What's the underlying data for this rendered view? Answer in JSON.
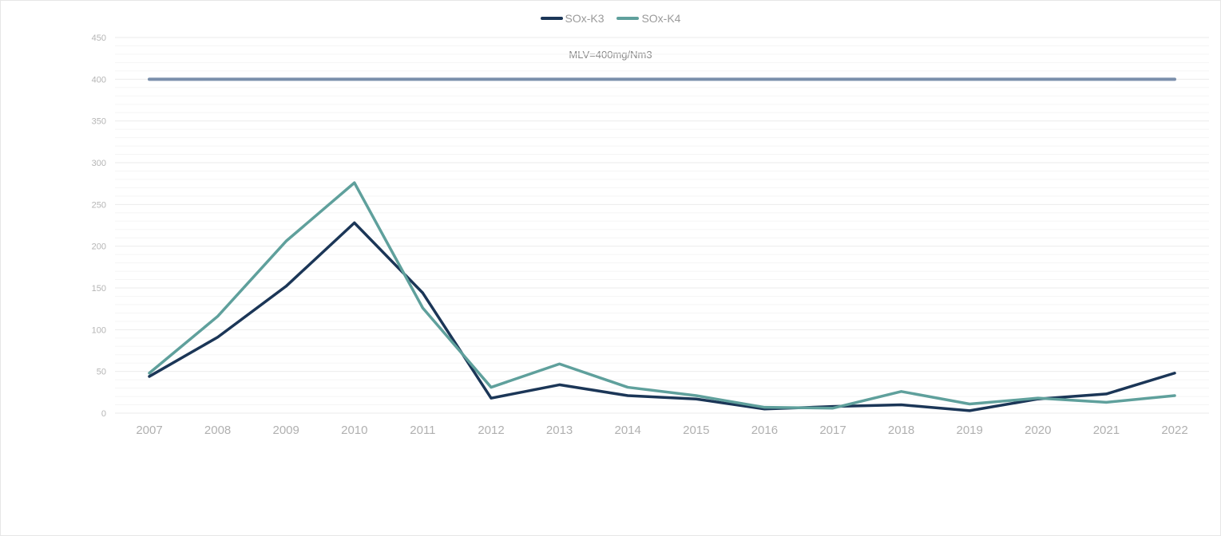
{
  "chart_data": {
    "type": "line",
    "categories": [
      "2007",
      "2008",
      "2009",
      "2010",
      "2011",
      "2012",
      "2013",
      "2014",
      "2015",
      "2016",
      "2017",
      "2018",
      "2019",
      "2020",
      "2021",
      "2022"
    ],
    "series": [
      {
        "name": "SOx-K3",
        "color": "#1b3657",
        "values": [
          44,
          91,
          152,
          228,
          144,
          18,
          34,
          21,
          17,
          5,
          8,
          10,
          3,
          17,
          23,
          48
        ]
      },
      {
        "name": "SOx-K4",
        "color": "#5fa09c",
        "values": [
          48,
          116,
          206,
          276,
          126,
          31,
          59,
          31,
          21,
          7,
          6,
          26,
          11,
          18,
          13,
          21
        ]
      }
    ],
    "reference_line": {
      "label": "MLV=400mg/Nm3",
      "value": 400,
      "color": "#7a8fab"
    },
    "ylim": [
      0,
      450
    ],
    "yticks": [
      0,
      50,
      100,
      150,
      200,
      250,
      300,
      350,
      400,
      450
    ],
    "legend_position": "top-center",
    "grid": true
  }
}
